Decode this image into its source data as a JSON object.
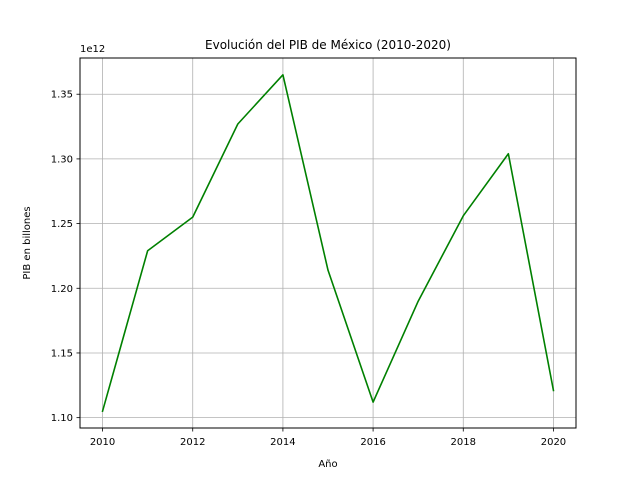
{
  "chart_data": {
    "type": "line",
    "title": "Evolución del PIB de México (2010-2020)",
    "xlabel": "Año",
    "ylabel": "PIB en billones",
    "y_offset_label": "1e12",
    "x": [
      2010,
      2011,
      2012,
      2013,
      2014,
      2015,
      2016,
      2017,
      2018,
      2019,
      2020
    ],
    "series": [
      {
        "values": [
          1105000000000.0,
          1229000000000.0,
          1255000000000.0,
          1327000000000.0,
          1365000000000.0,
          1214000000000.0,
          1112000000000.0,
          1190000000000.0,
          1256000000000.0,
          1304000000000.0,
          1121000000000.0
        ],
        "color": "#008000"
      }
    ],
    "xlim": [
      2009.5,
      2020.5
    ],
    "ylim": [
      1092000000000.0,
      1378000000000.0
    ],
    "x_ticks": [
      2010,
      2012,
      2014,
      2016,
      2018,
      2020
    ],
    "x_tick_labels": [
      "2010",
      "2012",
      "2014",
      "2016",
      "2018",
      "2020"
    ],
    "y_ticks": [
      1100000000000.0,
      1150000000000.0,
      1200000000000.0,
      1250000000000.0,
      1300000000000.0,
      1350000000000.0
    ],
    "y_tick_labels": [
      "1.10",
      "1.15",
      "1.20",
      "1.25",
      "1.30",
      "1.35"
    ],
    "grid": true
  }
}
